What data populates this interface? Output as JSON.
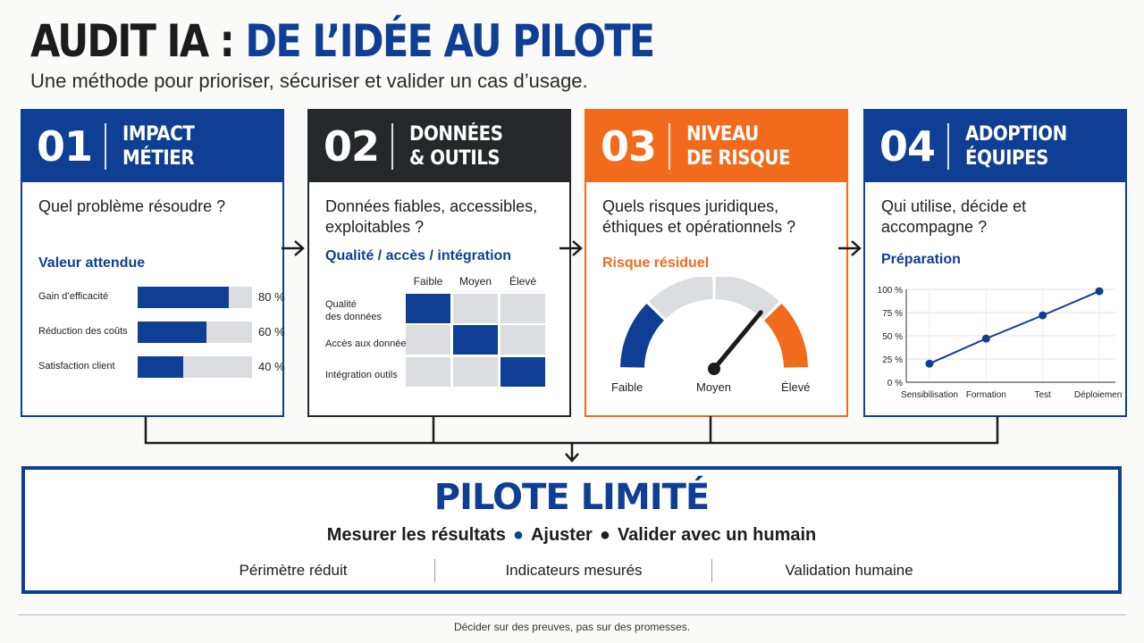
{
  "header": {
    "title_part1": "AUDIT IA : ",
    "title_part2": "DE L’IDÉE AU PILOTE",
    "subtitle": "Une méthode pour prioriser, sécuriser et valider un cas d’usage."
  },
  "colors": {
    "blue": "#0f3f95",
    "dark": "#25272b",
    "orange": "#f26a1b",
    "gray": "#dcdde0"
  },
  "cards": [
    {
      "number": "01",
      "title_line1": "IMPACT",
      "title_line2": "MÉTIER",
      "question": "Quel problème résoudre ?",
      "section": "Valeur attendue",
      "bars": [
        {
          "label": "Gain d’efficacité",
          "value": 80,
          "pct_text": "80 %"
        },
        {
          "label": "Réduction des coûts",
          "value": 60,
          "pct_text": "60 %"
        },
        {
          "label": "Satisfaction client",
          "value": 40,
          "pct_text": "40 %"
        }
      ]
    },
    {
      "number": "02",
      "title_line1": "DONNÉES",
      "title_line2": "& OUTILS",
      "question": "Données fiables, accessibles, exploitables ?",
      "section": "Qualité / accès / intégration",
      "columns": [
        "Faible",
        "Moyen",
        "Élevé"
      ],
      "rows": [
        {
          "label_line1": "Qualité",
          "label_line2": "des données",
          "level": 0
        },
        {
          "label_line1": "Accès aux données",
          "label_line2": "",
          "level": 1
        },
        {
          "label_line1": "Intégration outils",
          "label_line2": "",
          "level": 2
        }
      ]
    },
    {
      "number": "03",
      "title_line1": "NIVEAU",
      "title_line2": "DE RISQUE",
      "question": "Quels risques juridiques, éthiques et opérationnels ?",
      "section": "Risque résiduel",
      "gauge_labels": [
        "Faible",
        "Moyen",
        "Élevé"
      ],
      "gauge_value": 0.72
    },
    {
      "number": "04",
      "title_line1": "ADOPTION",
      "title_line2": "ÉQUIPES",
      "question": "Qui utilise, décide et accompagne ?",
      "section": "Préparation"
    }
  ],
  "chart_data": {
    "type": "line",
    "title": "Préparation",
    "x": [
      "Sensibilisation",
      "Formation",
      "Test",
      "Déploiement"
    ],
    "series": [
      {
        "values": [
          20,
          47,
          72,
          98
        ]
      }
    ],
    "yticks": [
      "100 %",
      "75 %",
      "50 %",
      "25 %",
      "0 %"
    ],
    "ylim": [
      0,
      100
    ],
    "grid": true
  },
  "pilot": {
    "title": "PILOTE LIMITÉ",
    "steps": [
      "Mesurer les résultats",
      "Ajuster",
      "Valider avec un humain"
    ],
    "items": [
      "Périmètre réduit",
      "Indicateurs mesurés",
      "Validation humaine"
    ]
  },
  "footer": "Décider sur des preuves, pas sur des promesses."
}
